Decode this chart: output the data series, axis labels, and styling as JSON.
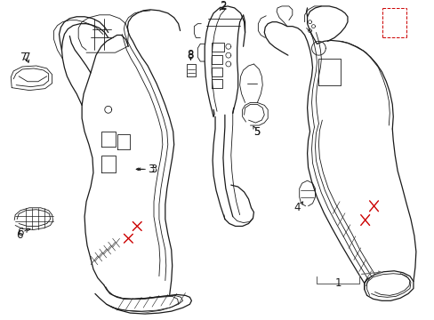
{
  "background_color": "#ffffff",
  "line_color": "#1a1a1a",
  "red_color": "#cc0000",
  "gray_color": "#666666",
  "fig_width": 4.89,
  "fig_height": 3.6,
  "dpi": 100
}
